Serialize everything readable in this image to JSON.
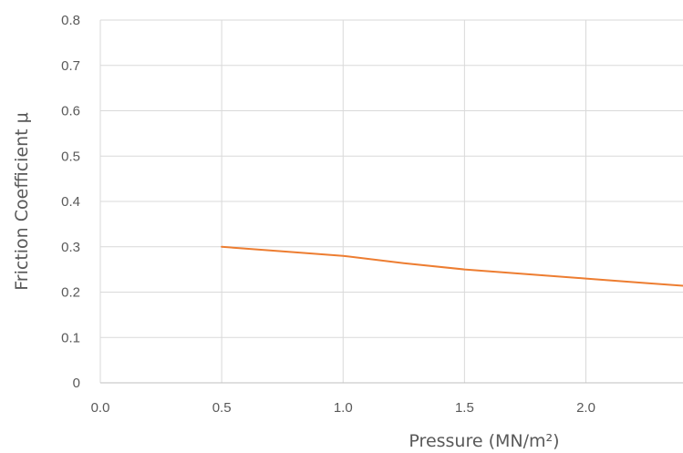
{
  "chart_data": {
    "type": "line",
    "xlabel": "Pressure (MN/m²)",
    "ylabel": "Friction Coefficient μ",
    "xlim": [
      0.0,
      2.4
    ],
    "ylim": [
      0,
      0.8
    ],
    "x_ticks": [
      "0.0",
      "0.5",
      "1.0",
      "1.5",
      "2.0"
    ],
    "y_ticks": [
      "0",
      "0.1",
      "0.2",
      "0.3",
      "0.4",
      "0.5",
      "0.6",
      "0.7",
      "0.8"
    ],
    "grid": true,
    "series": [
      {
        "color": "#ED7D31",
        "x": [
          0.5,
          0.75,
          1.0,
          1.25,
          1.5,
          1.75,
          2.0,
          2.25,
          2.4
        ],
        "y": [
          0.3,
          0.29,
          0.28,
          0.264,
          0.25,
          0.24,
          0.23,
          0.22,
          0.214
        ]
      }
    ]
  }
}
